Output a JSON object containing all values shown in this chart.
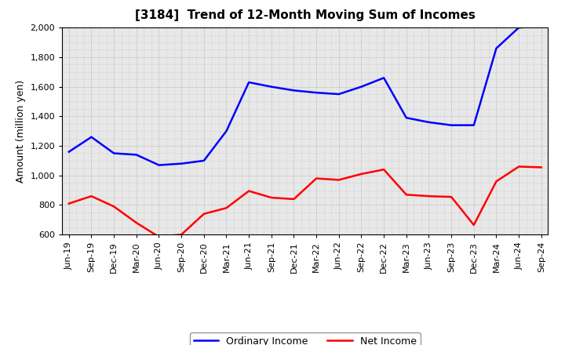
{
  "title": "[3184]  Trend of 12-Month Moving Sum of Incomes",
  "ylabel": "Amount (million yen)",
  "xlabels": [
    "Jun-19",
    "Sep-19",
    "Dec-19",
    "Mar-20",
    "Jun-20",
    "Sep-20",
    "Dec-20",
    "Mar-21",
    "Jun-21",
    "Sep-21",
    "Dec-21",
    "Mar-22",
    "Jun-22",
    "Sep-22",
    "Dec-22",
    "Mar-23",
    "Jun-23",
    "Sep-23",
    "Dec-23",
    "Mar-24",
    "Jun-24",
    "Sep-24"
  ],
  "ordinary_income": [
    1160,
    1260,
    1150,
    1140,
    1070,
    1080,
    1100,
    1300,
    1630,
    1600,
    1575,
    1560,
    1550,
    1600,
    1660,
    1390,
    1360,
    1340,
    1340,
    1860,
    2000,
    2010
  ],
  "net_income": [
    810,
    860,
    790,
    680,
    585,
    600,
    740,
    780,
    895,
    850,
    840,
    980,
    970,
    1010,
    1040,
    870,
    860,
    855,
    665,
    960,
    1060,
    1055
  ],
  "ordinary_color": "#0000ff",
  "net_color": "#ff0000",
  "ylim": [
    600,
    2000
  ],
  "yticks": [
    600,
    800,
    1000,
    1200,
    1400,
    1600,
    1800,
    2000
  ],
  "plot_bg_color": "#e8e8e8",
  "fig_bg_color": "#ffffff",
  "grid_color": "#888888",
  "legend_ordinary": "Ordinary Income",
  "legend_net": "Net Income",
  "title_fontsize": 11,
  "axis_label_fontsize": 9,
  "tick_fontsize": 8
}
